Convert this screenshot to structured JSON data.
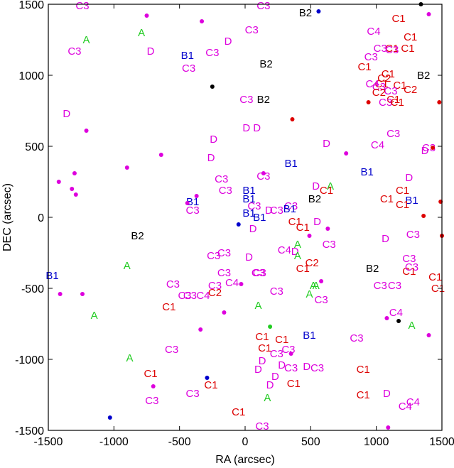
{
  "chart_data": {
    "type": "scatter",
    "xlabel": "RA (arcsec)",
    "ylabel": "DEC (arcsec)",
    "xlim": [
      -1500,
      1500
    ],
    "ylim": [
      -1500,
      1500
    ],
    "xticks": [
      -1500,
      -1000,
      -500,
      0,
      500,
      1000,
      1500
    ],
    "yticks": [
      -1500,
      -1000,
      -500,
      0,
      500,
      1000,
      1500
    ],
    "grid": false,
    "colors": {
      "A": "#22cc22",
      "B1": "#0000cc",
      "B2": "#000000",
      "C1": "#dd0000",
      "C2": "#dd0000",
      "C3": "#dd00dd",
      "C4": "#dd00dd",
      "D": "#dd00dd"
    },
    "labels": [
      {
        "t": "C3",
        "x": -1240,
        "y": 1490
      },
      {
        "t": "A",
        "x": -1210,
        "y": 1250
      },
      {
        "t": "C3",
        "x": -1300,
        "y": 1170
      },
      {
        "t": "A",
        "x": -790,
        "y": 1300
      },
      {
        "t": "D",
        "x": -720,
        "y": 1170
      },
      {
        "t": "B1",
        "x": -440,
        "y": 1140
      },
      {
        "t": "C3",
        "x": -430,
        "y": 1050
      },
      {
        "t": "C3",
        "x": -250,
        "y": 1160
      },
      {
        "t": "D",
        "x": -130,
        "y": 1240
      },
      {
        "t": "C3",
        "x": 50,
        "y": 1320
      },
      {
        "t": "C3",
        "x": 140,
        "y": 1490
      },
      {
        "t": "B2",
        "x": 460,
        "y": 1440
      },
      {
        "t": "B2",
        "x": 160,
        "y": 1080
      },
      {
        "t": "B2",
        "x": 140,
        "y": 830
      },
      {
        "t": "C3",
        "x": 10,
        "y": 830
      },
      {
        "t": "C1",
        "x": 1170,
        "y": 1400
      },
      {
        "t": "C4",
        "x": 980,
        "y": 1310
      },
      {
        "t": "C1",
        "x": 1260,
        "y": 1270
      },
      {
        "t": "C1",
        "x": 1120,
        "y": 1190
      },
      {
        "t": "C1",
        "x": 1240,
        "y": 1190
      },
      {
        "t": "C3",
        "x": 1030,
        "y": 1190
      },
      {
        "t": "C3",
        "x": 1120,
        "y": 1180
      },
      {
        "t": "C3",
        "x": 960,
        "y": 1130
      },
      {
        "t": "C1",
        "x": 910,
        "y": 1060
      },
      {
        "t": "C1",
        "x": 1090,
        "y": 1010
      },
      {
        "t": "C2",
        "x": 1060,
        "y": 980
      },
      {
        "t": "C1",
        "x": 1040,
        "y": 940
      },
      {
        "t": "C4",
        "x": 970,
        "y": 940
      },
      {
        "t": "C3",
        "x": 1020,
        "y": 920
      },
      {
        "t": "C1",
        "x": 1180,
        "y": 930
      },
      {
        "t": "C2",
        "x": 1260,
        "y": 900
      },
      {
        "t": "C3",
        "x": 1110,
        "y": 890
      },
      {
        "t": "C2",
        "x": 1020,
        "y": 880
      },
      {
        "t": "B2",
        "x": 1360,
        "y": 1000
      },
      {
        "t": "C1",
        "x": 1130,
        "y": 830
      },
      {
        "t": "C3",
        "x": 1070,
        "y": 810
      },
      {
        "t": "C1",
        "x": 1160,
        "y": 810
      },
      {
        "t": "D",
        "x": -1360,
        "y": 730
      },
      {
        "t": "D",
        "x": 10,
        "y": 630
      },
      {
        "t": "D",
        "x": 90,
        "y": 630
      },
      {
        "t": "C3",
        "x": 1130,
        "y": 590
      },
      {
        "t": "D",
        "x": 620,
        "y": 520
      },
      {
        "t": "C4",
        "x": 1010,
        "y": 510
      },
      {
        "t": "D",
        "x": -240,
        "y": 550
      },
      {
        "t": "D",
        "x": -260,
        "y": 420
      },
      {
        "t": "C3",
        "x": 1400,
        "y": 490
      },
      {
        "t": "D",
        "x": 1370,
        "y": 470
      },
      {
        "t": "B1",
        "x": 350,
        "y": 380
      },
      {
        "t": "B1",
        "x": 930,
        "y": 320
      },
      {
        "t": "C3",
        "x": -180,
        "y": 270
      },
      {
        "t": "C3",
        "x": 140,
        "y": 290
      },
      {
        "t": "D",
        "x": 1250,
        "y": 280
      },
      {
        "t": "D",
        "x": 540,
        "y": 220
      },
      {
        "t": "A",
        "x": 650,
        "y": 220
      },
      {
        "t": "C1",
        "x": 620,
        "y": 190
      },
      {
        "t": "C3",
        "x": -150,
        "y": 190
      },
      {
        "t": "B1",
        "x": 30,
        "y": 190
      },
      {
        "t": "C1",
        "x": 1200,
        "y": 190
      },
      {
        "t": "C1",
        "x": 1080,
        "y": 130
      },
      {
        "t": "B1",
        "x": 30,
        "y": 130
      },
      {
        "t": "B1",
        "x": -400,
        "y": 110
      },
      {
        "t": "B1",
        "x": 1270,
        "y": 120
      },
      {
        "t": "C1",
        "x": 1200,
        "y": 90
      },
      {
        "t": "B2",
        "x": 530,
        "y": 130
      },
      {
        "t": "C3",
        "x": -400,
        "y": 50
      },
      {
        "t": "C3",
        "x": 70,
        "y": 80
      },
      {
        "t": "C3",
        "x": 350,
        "y": 80
      },
      {
        "t": "B1",
        "x": 340,
        "y": 60
      },
      {
        "t": "B1",
        "x": 30,
        "y": 30
      },
      {
        "t": "D",
        "x": 180,
        "y": 50
      },
      {
        "t": "C3",
        "x": 240,
        "y": 50
      },
      {
        "t": "B1",
        "x": 110,
        "y": 0
      },
      {
        "t": "C1",
        "x": 380,
        "y": -30
      },
      {
        "t": "D",
        "x": 550,
        "y": -30
      },
      {
        "t": "C1",
        "x": 440,
        "y": -70
      },
      {
        "t": "D",
        "x": 60,
        "y": -80
      },
      {
        "t": "B2",
        "x": -820,
        "y": -130
      },
      {
        "t": "D",
        "x": 1070,
        "y": -150
      },
      {
        "t": "C3",
        "x": 1280,
        "y": -120
      },
      {
        "t": "C3",
        "x": 640,
        "y": -190
      },
      {
        "t": "C4",
        "x": 300,
        "y": -230
      },
      {
        "t": "D",
        "x": 380,
        "y": -240
      },
      {
        "t": "A",
        "x": 400,
        "y": -190
      },
      {
        "t": "C3",
        "x": -160,
        "y": -250
      },
      {
        "t": "C3",
        "x": -240,
        "y": -270
      },
      {
        "t": "D",
        "x": 30,
        "y": -280
      },
      {
        "t": "C3",
        "x": 1250,
        "y": -290
      },
      {
        "t": "A",
        "x": 400,
        "y": -270
      },
      {
        "t": "C2",
        "x": 510,
        "y": -320
      },
      {
        "t": "C1",
        "x": 440,
        "y": -360
      },
      {
        "t": "A",
        "x": -900,
        "y": -340
      },
      {
        "t": "B2",
        "x": 970,
        "y": -360
      },
      {
        "t": "C1",
        "x": 1250,
        "y": -380
      },
      {
        "t": "C3",
        "x": 1270,
        "y": -350
      },
      {
        "t": "C3",
        "x": -160,
        "y": -390
      },
      {
        "t": "C3",
        "x": 100,
        "y": -390
      },
      {
        "t": "C3",
        "x": 110,
        "y": -390
      },
      {
        "t": "C1",
        "x": 1450,
        "y": -420
      },
      {
        "t": "B1",
        "x": -1470,
        "y": -410
      },
      {
        "t": "C3",
        "x": -550,
        "y": -470
      },
      {
        "t": "C4",
        "x": -100,
        "y": -460
      },
      {
        "t": "C3",
        "x": -230,
        "y": -480
      },
      {
        "t": "C3",
        "x": 1030,
        "y": -480
      },
      {
        "t": "C3",
        "x": 1140,
        "y": -480
      },
      {
        "t": "C1",
        "x": 1470,
        "y": -500
      },
      {
        "t": "A",
        "x": 520,
        "y": -480
      },
      {
        "t": "A",
        "x": 540,
        "y": -480
      },
      {
        "t": "C3",
        "x": 240,
        "y": -520
      },
      {
        "t": "C3",
        "x": -460,
        "y": -550
      },
      {
        "t": "C3",
        "x": -420,
        "y": -550
      },
      {
        "t": "C4",
        "x": -320,
        "y": -550
      },
      {
        "t": "C2",
        "x": -230,
        "y": -530
      },
      {
        "t": "A",
        "x": 490,
        "y": -540
      },
      {
        "t": "C3",
        "x": 580,
        "y": -580
      },
      {
        "t": "C1",
        "x": -580,
        "y": -630
      },
      {
        "t": "A",
        "x": 100,
        "y": -620
      },
      {
        "t": "A",
        "x": -1150,
        "y": -690
      },
      {
        "t": "C4",
        "x": 1150,
        "y": -670
      },
      {
        "t": "A",
        "x": 1270,
        "y": -760
      },
      {
        "t": "B1",
        "x": 490,
        "y": -830
      },
      {
        "t": "C1",
        "x": 130,
        "y": -840
      },
      {
        "t": "C1",
        "x": 280,
        "y": -860
      },
      {
        "t": "C3",
        "x": 850,
        "y": -850
      },
      {
        "t": "C1",
        "x": 150,
        "y": -920
      },
      {
        "t": "C3",
        "x": 330,
        "y": -930
      },
      {
        "t": "C3",
        "x": 240,
        "y": -960
      },
      {
        "t": "C3",
        "x": -560,
        "y": -930
      },
      {
        "t": "A",
        "x": -880,
        "y": -990
      },
      {
        "t": "D",
        "x": 130,
        "y": -1010
      },
      {
        "t": "D",
        "x": 100,
        "y": -1070
      },
      {
        "t": "D",
        "x": 280,
        "y": -1040
      },
      {
        "t": "C3",
        "x": 350,
        "y": -1060
      },
      {
        "t": "D",
        "x": 470,
        "y": -1050
      },
      {
        "t": "C3",
        "x": 550,
        "y": -1060
      },
      {
        "t": "C1",
        "x": 900,
        "y": -1070
      },
      {
        "t": "C1",
        "x": -720,
        "y": -1100
      },
      {
        "t": "D",
        "x": 230,
        "y": -1120
      },
      {
        "t": "C1",
        "x": 370,
        "y": -1170
      },
      {
        "t": "D",
        "x": 190,
        "y": -1180
      },
      {
        "t": "C1",
        "x": -260,
        "y": -1180
      },
      {
        "t": "C3",
        "x": -710,
        "y": -1290
      },
      {
        "t": "C3",
        "x": -400,
        "y": -1240
      },
      {
        "t": "C1",
        "x": 900,
        "y": -1250
      },
      {
        "t": "D",
        "x": 1080,
        "y": -1240
      },
      {
        "t": "A",
        "x": 170,
        "y": -1270
      },
      {
        "t": "C4",
        "x": 1280,
        "y": -1300
      },
      {
        "t": "C4",
        "x": 1220,
        "y": -1330
      },
      {
        "t": "C1",
        "x": -50,
        "y": -1370
      },
      {
        "t": "C3",
        "x": 130,
        "y": -1470
      }
    ],
    "points": [
      {
        "t": "C3",
        "x": -750,
        "y": 1420
      },
      {
        "t": "C3",
        "x": -330,
        "y": 1380
      },
      {
        "t": "B1",
        "x": 560,
        "y": 1450
      },
      {
        "t": "B2",
        "x": 1340,
        "y": 1500
      },
      {
        "t": "C3",
        "x": 1400,
        "y": 1430
      },
      {
        "t": "B2",
        "x": -250,
        "y": 920
      },
      {
        "t": "C1",
        "x": 940,
        "y": 810
      },
      {
        "t": "C1",
        "x": 1480,
        "y": 810
      },
      {
        "t": "C1",
        "x": 360,
        "y": 690
      },
      {
        "t": "C3",
        "x": -1210,
        "y": 610
      },
      {
        "t": "C3",
        "x": -640,
        "y": 440
      },
      {
        "t": "C3",
        "x": 770,
        "y": 450
      },
      {
        "t": "C1",
        "x": 1430,
        "y": 490
      },
      {
        "t": "C3",
        "x": -900,
        "y": 350
      },
      {
        "t": "C3",
        "x": 140,
        "y": 310
      },
      {
        "t": "C3",
        "x": -1300,
        "y": 310
      },
      {
        "t": "C3",
        "x": -1420,
        "y": 250
      },
      {
        "t": "C3",
        "x": -1320,
        "y": 200
      },
      {
        "t": "C3",
        "x": -1290,
        "y": 160
      },
      {
        "t": "C3",
        "x": -370,
        "y": 150
      },
      {
        "t": "C3",
        "x": -440,
        "y": 100
      },
      {
        "t": "C1",
        "x": 1490,
        "y": 110
      },
      {
        "t": "C1",
        "x": 1360,
        "y": 10
      },
      {
        "t": "B1",
        "x": -50,
        "y": -50
      },
      {
        "t": "C3",
        "x": 630,
        "y": -80
      },
      {
        "t": "C1",
        "x": 1500,
        "y": -130
      },
      {
        "t": "C3",
        "x": 490,
        "y": -130
      },
      {
        "t": "C3",
        "x": 580,
        "y": -450
      },
      {
        "t": "C3",
        "x": -30,
        "y": -470
      },
      {
        "t": "C3",
        "x": -1410,
        "y": -540
      },
      {
        "t": "C3",
        "x": -1240,
        "y": -540
      },
      {
        "t": "C3",
        "x": -160,
        "y": -670
      },
      {
        "t": "C3",
        "x": 1080,
        "y": -710
      },
      {
        "t": "B2",
        "x": 1170,
        "y": -730
      },
      {
        "t": "A",
        "x": 190,
        "y": -770
      },
      {
        "t": "C3",
        "x": -340,
        "y": -790
      },
      {
        "t": "C3",
        "x": 1400,
        "y": -830
      },
      {
        "t": "C3",
        "x": 350,
        "y": -960
      },
      {
        "t": "B1",
        "x": -290,
        "y": -1130
      },
      {
        "t": "C3",
        "x": -700,
        "y": -1190
      },
      {
        "t": "B1",
        "x": -1030,
        "y": -1410
      },
      {
        "t": "C3",
        "x": 1090,
        "y": -1480
      }
    ]
  }
}
